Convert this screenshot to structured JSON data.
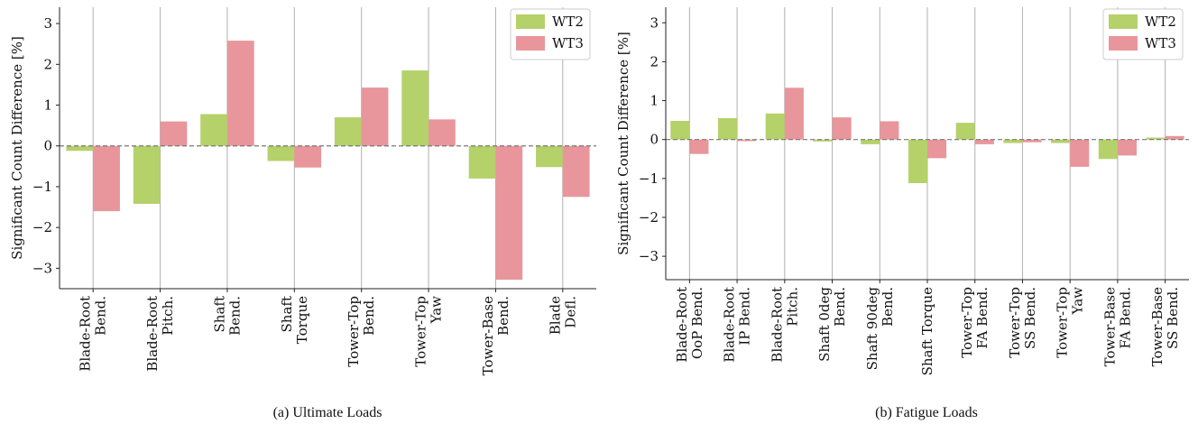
{
  "colors": {
    "WT2": "#b5d16a",
    "WT3": "#e8969b",
    "grid": "#b0b0b0",
    "zero": "#777777"
  },
  "chart_data": [
    {
      "type": "bar",
      "caption": "(a)  Ultimate Loads",
      "ylabel": "Significant Count Difference [%]",
      "ylim": [
        -3.5,
        3.4
      ],
      "yticks": [
        -3,
        -2,
        -1,
        0,
        1,
        2,
        3
      ],
      "ytick_labels": [
        "−3",
        "−2",
        "−1",
        "0",
        "1",
        "2",
        "3"
      ],
      "grid": "vertical",
      "legend": "top-right",
      "categories": [
        [
          "Blade-Root",
          "Bend."
        ],
        [
          "Blade-Root",
          "Pitch."
        ],
        [
          "Shaft",
          "Bend."
        ],
        [
          "Shaft",
          "Torque"
        ],
        [
          "Tower-Top",
          "Bend."
        ],
        [
          "Tower-Top",
          "Yaw"
        ],
        [
          "Tower-Base",
          "Bend."
        ],
        [
          "Blade",
          "Defl."
        ]
      ],
      "series": [
        {
          "name": "WT2",
          "values": [
            -0.12,
            -1.42,
            0.78,
            -0.37,
            0.7,
            1.85,
            -0.8,
            -0.52
          ]
        },
        {
          "name": "WT3",
          "values": [
            -1.6,
            0.6,
            2.58,
            -0.53,
            1.43,
            0.65,
            -3.28,
            -1.25
          ]
        }
      ]
    },
    {
      "type": "bar",
      "caption": "(b)  Fatigue Loads",
      "ylabel": "Significant Count Difference [%]",
      "ylim": [
        -3.6,
        3.4
      ],
      "yticks": [
        -3,
        -2,
        -1,
        0,
        1,
        2,
        3
      ],
      "ytick_labels": [
        "−3",
        "−2",
        "−1",
        "0",
        "1",
        "2",
        "3"
      ],
      "grid": "vertical",
      "legend": "top-right",
      "categories": [
        [
          "Blade-Root",
          "OoP Bend."
        ],
        [
          "Blade-Root",
          "IP Bend."
        ],
        [
          "Blade-Root",
          "Pitch."
        ],
        [
          "Shaft 0deg",
          "Bend."
        ],
        [
          "Shaft 90deg",
          "Bend."
        ],
        [
          "Shaft Torque"
        ],
        [
          "Tower-Top",
          "FA Bend."
        ],
        [
          "Tower-Top",
          "SS Bend."
        ],
        [
          "Tower-Top",
          "Yaw"
        ],
        [
          "Tower-Base",
          "FA Bend."
        ],
        [
          "Tower-Base",
          "SS Bend."
        ]
      ],
      "series": [
        {
          "name": "WT2",
          "values": [
            0.48,
            0.55,
            0.67,
            -0.05,
            -0.12,
            -1.12,
            0.43,
            -0.09,
            -0.09,
            -0.5,
            0.05
          ]
        },
        {
          "name": "WT3",
          "values": [
            -0.37,
            -0.04,
            1.33,
            0.57,
            0.47,
            -0.48,
            -0.12,
            -0.07,
            -0.7,
            -0.41,
            0.09
          ]
        }
      ]
    }
  ]
}
